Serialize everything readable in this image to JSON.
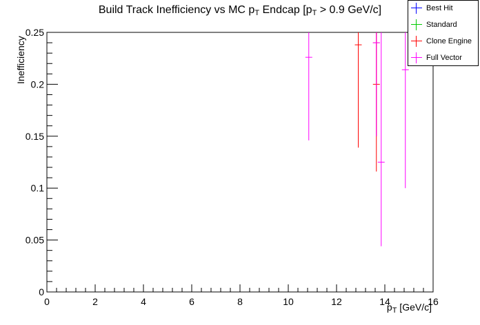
{
  "chart_data": {
    "type": "scatter",
    "title": {
      "pre": "Build Track Inefficiency vs MC p",
      "sub1": "T",
      "mid": " Endcap [p",
      "sub2": "T",
      "post": " > 0.9 GeV/c]"
    },
    "xlabel": {
      "pre": "p",
      "sub": "T",
      "post": " [GeV/c]"
    },
    "ylabel": "Inefficiency",
    "xlim": [
      0,
      16
    ],
    "ylim": [
      0,
      0.25
    ],
    "xticks": [
      "0",
      "2",
      "4",
      "6",
      "8",
      "10",
      "12",
      "14",
      "16"
    ],
    "yticks": [
      "0",
      "0.05",
      "0.1",
      "0.15",
      "0.2",
      "0.25"
    ],
    "legend_position": "top-right",
    "series": [
      {
        "name": "Best Hit",
        "color": "#0000ff",
        "points": []
      },
      {
        "name": "Standard",
        "color": "#00cc00",
        "points": []
      },
      {
        "name": "Clone Engine",
        "color": "#ff0000",
        "points": [
          {
            "x": 12.9,
            "y": 0.238,
            "lo": 0.139,
            "hi": 0.25
          },
          {
            "x": 13.65,
            "y": 0.2,
            "lo": 0.116,
            "hi": 0.25
          },
          {
            "x": 13.65,
            "y": 0.24,
            "lo": 0.15,
            "hi": 0.25
          }
        ]
      },
      {
        "name": "Full Vector",
        "color": "#ff00ff",
        "points": [
          {
            "x": 10.85,
            "y": 0.226,
            "lo": 0.146,
            "hi": 0.25
          },
          {
            "x": 13.65,
            "y": 0.24,
            "lo": 0.15,
            "hi": 0.25
          },
          {
            "x": 13.85,
            "y": 0.125,
            "lo": 0.044,
            "hi": 0.25
          },
          {
            "x": 14.85,
            "y": 0.214,
            "lo": 0.1,
            "hi": 0.25
          }
        ]
      }
    ]
  }
}
